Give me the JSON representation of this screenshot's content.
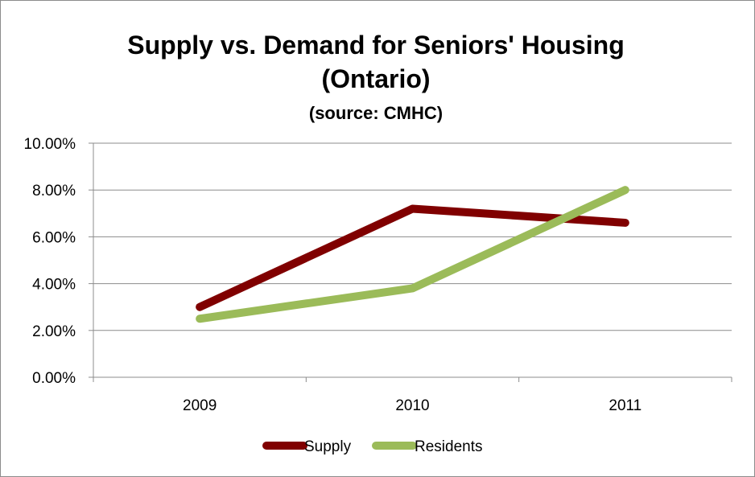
{
  "chart_data": {
    "type": "line",
    "title_line1": "Supply vs. Demand for Seniors' Housing",
    "title_line2": "(Ontario)",
    "subtitle": "(source: CMHC)",
    "categories": [
      "2009",
      "2010",
      "2011"
    ],
    "series": [
      {
        "name": "Supply",
        "values": [
          3.0,
          7.2,
          6.6
        ],
        "color": "#800000"
      },
      {
        "name": "Residents",
        "values": [
          2.5,
          3.8,
          8.0
        ],
        "color": "#9bbb59"
      }
    ],
    "ylim": [
      0,
      10
    ],
    "y_ticks": [
      0,
      2,
      4,
      6,
      8,
      10
    ],
    "y_tick_labels": [
      "0.00%",
      "2.00%",
      "4.00%",
      "6.00%",
      "8.00%",
      "10.00%"
    ],
    "grid": true,
    "legend_position": "bottom"
  }
}
